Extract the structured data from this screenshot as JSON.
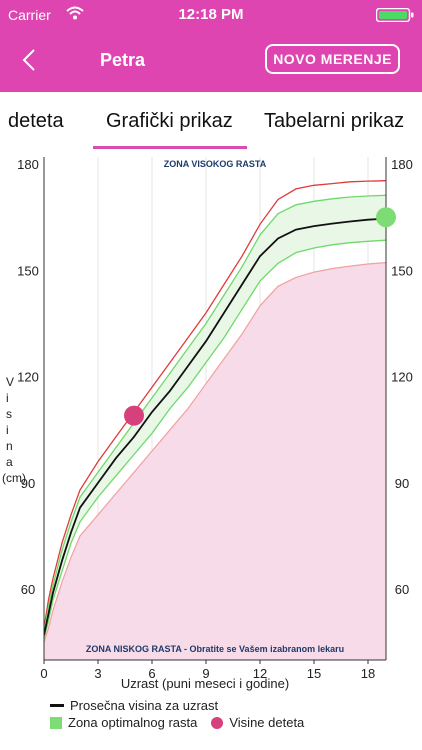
{
  "status": {
    "carrier": "Carrier",
    "time": "12:18 PM"
  },
  "nav": {
    "title": "Petra",
    "new_button": "NOVO MERENJE"
  },
  "tabs": [
    {
      "label": "deteta"
    },
    {
      "label": "Grafički prikaz"
    },
    {
      "label": "Tabelarni prikaz"
    }
  ],
  "chart": {
    "top_zone_label": "ZONA VISOKOG RASTA",
    "bottom_zone_label": "ZONA NISKOG RASTA - Obratite se Vašem izabranom lekaru",
    "xlabel": "Uzrast (puni meseci i godine)",
    "ylabel_chars": [
      "V",
      "i",
      "s",
      "i",
      "n",
      "a",
      "(cm)"
    ],
    "x_ticks": [
      "0",
      "3",
      "6",
      "9",
      "12",
      "15",
      "18"
    ],
    "y_ticks": [
      "180",
      "150",
      "120",
      "90",
      "60"
    ],
    "legend": {
      "average": "Prosečna visina za uzrast",
      "optimal": "Zona optimalnog rasta",
      "child": "Visine deteta"
    }
  },
  "colors": {
    "accent": "#de45b1",
    "red_line": "#e03a3a",
    "green_line": "#6fd96a",
    "green_fill": "#e8f7e6",
    "pink_fill": "#f7dbe9",
    "child_point": "#d6407c",
    "current_point": "#7ddc74"
  },
  "chart_data": {
    "type": "line",
    "xlim": [
      0,
      19
    ],
    "ylim": [
      40,
      182
    ],
    "x_ticks": [
      0,
      3,
      6,
      9,
      12,
      15,
      18
    ],
    "y_ticks": [
      60,
      90,
      120,
      150,
      180
    ],
    "x": [
      0,
      0.25,
      0.5,
      1,
      1.5,
      2,
      3,
      4,
      5,
      6,
      7,
      8,
      9,
      10,
      11,
      12,
      13,
      14,
      15,
      16,
      17,
      18,
      19
    ],
    "series": [
      {
        "name": "upper_red",
        "values": [
          49,
          57,
          63,
          73,
          81,
          88,
          96,
          103,
          110,
          117,
          124,
          131,
          138,
          146,
          154,
          163,
          170,
          173,
          174,
          174.5,
          175,
          175.2,
          175.3
        ]
      },
      {
        "name": "upper_green",
        "values": [
          48,
          55,
          61,
          71,
          79,
          86,
          93,
          100,
          107,
          114,
          121,
          128,
          135,
          143,
          151,
          160,
          166,
          168.5,
          169.5,
          170.2,
          170.7,
          171,
          171.2
        ]
      },
      {
        "name": "Prosečna visina za uzrast",
        "values": [
          47,
          53,
          59,
          68,
          76,
          83,
          90,
          97,
          103,
          110,
          116,
          123,
          130,
          138,
          146,
          154,
          159,
          161.5,
          162.5,
          163.2,
          163.8,
          164.3,
          164.6
        ]
      },
      {
        "name": "lower_green",
        "values": [
          46,
          51,
          57,
          65,
          73,
          79,
          86,
          92,
          98,
          104,
          111,
          117,
          124,
          131,
          139,
          147,
          152,
          155,
          156.3,
          157.2,
          157.8,
          158.2,
          158.5
        ]
      },
      {
        "name": "lower_red",
        "values": [
          45,
          49,
          54,
          62,
          69,
          75,
          81,
          87,
          93,
          99,
          105,
          111,
          118,
          125,
          132,
          140,
          145.5,
          148,
          149.5,
          150.5,
          151.2,
          151.8,
          152.2
        ]
      }
    ],
    "points": [
      {
        "name": "Visine deteta",
        "x": 5,
        "y": 109
      },
      {
        "name": "current",
        "x": 19,
        "y": 165
      }
    ]
  }
}
